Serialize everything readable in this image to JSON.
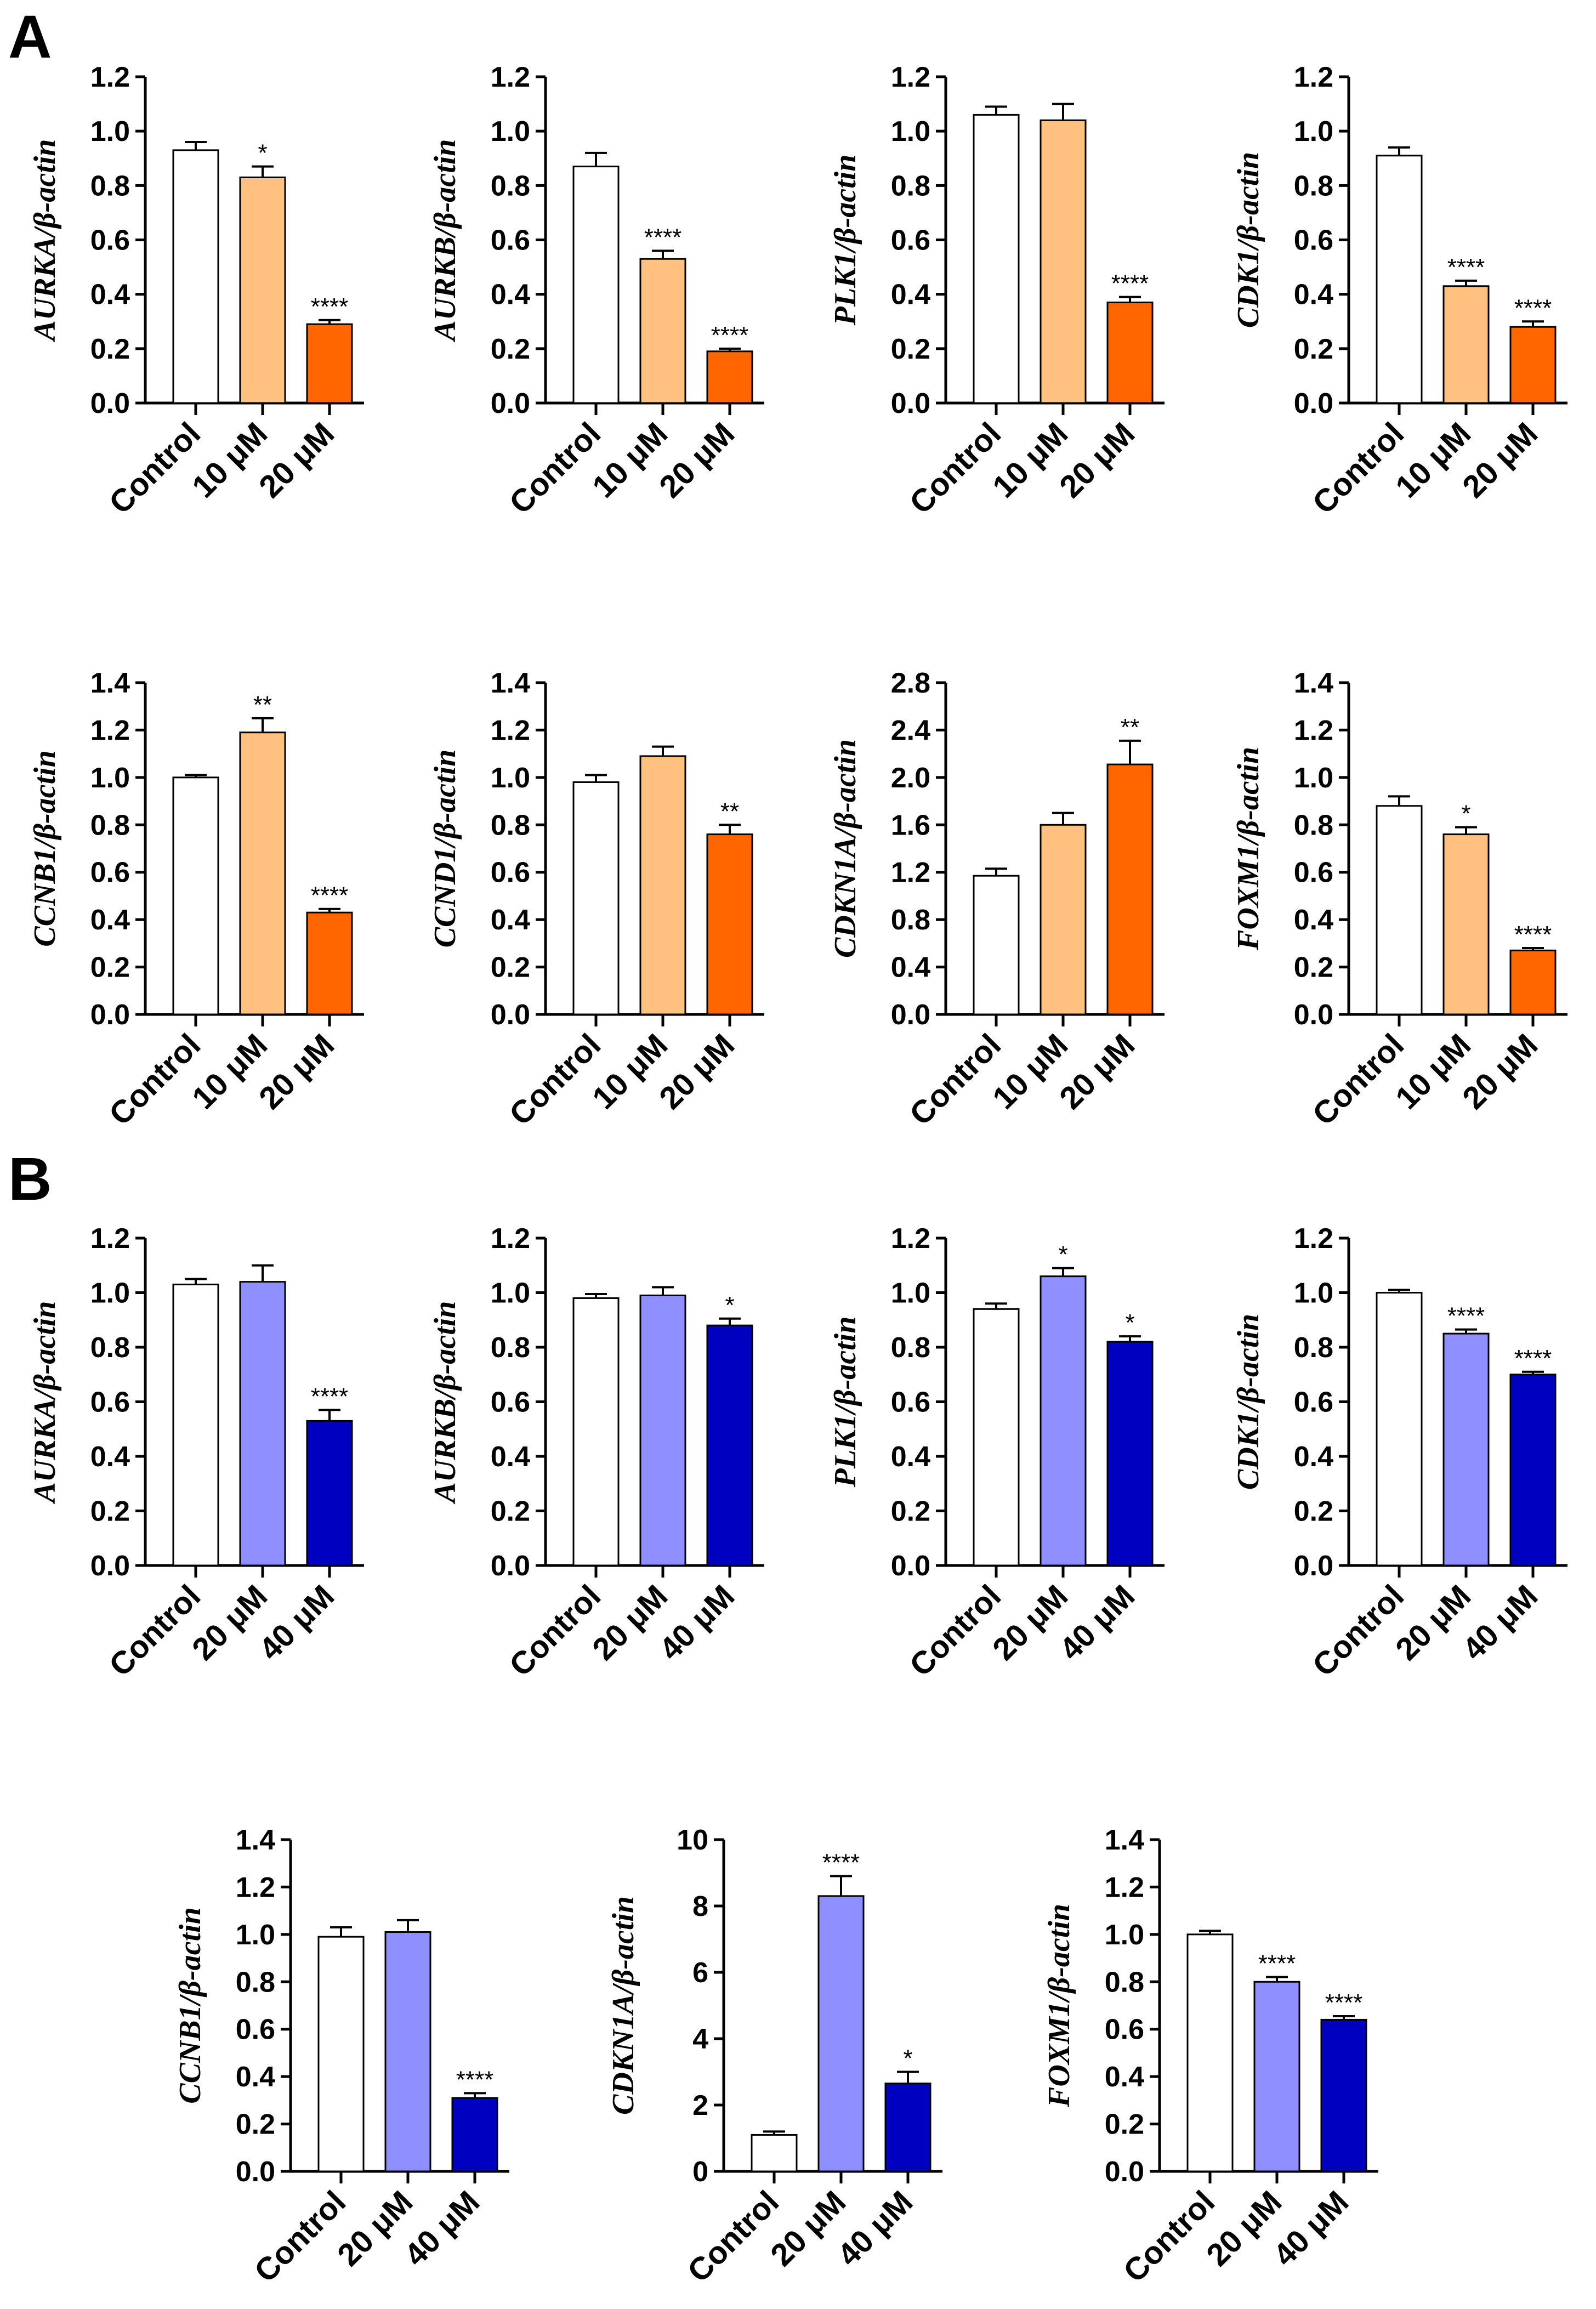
{
  "panels": [
    {
      "letter": "A"
    },
    {
      "letter": "B"
    }
  ],
  "colors": {
    "control": "#ffffff",
    "A_low": "#ffc080",
    "A_high": "#ff6600",
    "B_low": "#8f8fff",
    "B_high": "#0000c0"
  },
  "chart_data": [
    {
      "type": "bar",
      "panel": "A",
      "ylabel": "AURKA/β-actin",
      "ylim": [
        0,
        1.2
      ],
      "yticks": [
        "0.0",
        "0.2",
        "0.4",
        "0.6",
        "0.8",
        "1.0",
        "1.2"
      ],
      "categories": [
        "Control",
        "10 μM",
        "20 μM"
      ],
      "values": [
        0.93,
        0.83,
        0.29
      ],
      "errors": [
        0.03,
        0.04,
        0.015
      ],
      "significance": [
        "",
        "*",
        "****"
      ]
    },
    {
      "type": "bar",
      "panel": "A",
      "ylabel": "AURKB/β-actin",
      "ylim": [
        0,
        1.2
      ],
      "yticks": [
        "0.0",
        "0.2",
        "0.4",
        "0.6",
        "0.8",
        "1.0",
        "1.2"
      ],
      "categories": [
        "Control",
        "10 μM",
        "20 μM"
      ],
      "values": [
        0.87,
        0.53,
        0.19
      ],
      "errors": [
        0.05,
        0.03,
        0.01
      ],
      "significance": [
        "",
        "****",
        "****"
      ]
    },
    {
      "type": "bar",
      "panel": "A",
      "ylabel": "PLK1/β-actin",
      "ylim": [
        0,
        1.2
      ],
      "yticks": [
        "0.0",
        "0.2",
        "0.4",
        "0.6",
        "0.8",
        "1.0",
        "1.2"
      ],
      "categories": [
        "Control",
        "10 μM",
        "20 μM"
      ],
      "values": [
        1.06,
        1.04,
        0.37
      ],
      "errors": [
        0.03,
        0.06,
        0.02
      ],
      "significance": [
        "",
        "",
        "****"
      ]
    },
    {
      "type": "bar",
      "panel": "A",
      "ylabel": "CDK1/β-actin",
      "ylim": [
        0,
        1.2
      ],
      "yticks": [
        "0.0",
        "0.2",
        "0.4",
        "0.6",
        "0.8",
        "1.0",
        "1.2"
      ],
      "categories": [
        "Control",
        "10 μM",
        "20 μM"
      ],
      "values": [
        0.91,
        0.43,
        0.28
      ],
      "errors": [
        0.03,
        0.02,
        0.02
      ],
      "significance": [
        "",
        "****",
        "****"
      ]
    },
    {
      "type": "bar",
      "panel": "A",
      "ylabel": "CCNB1/β-actin",
      "ylim": [
        0,
        1.4
      ],
      "yticks": [
        "0.0",
        "0.2",
        "0.4",
        "0.6",
        "0.8",
        "1.0",
        "1.2",
        "1.4"
      ],
      "categories": [
        "Control",
        "10 μM",
        "20 μM"
      ],
      "values": [
        1.0,
        1.19,
        0.43
      ],
      "errors": [
        0.01,
        0.06,
        0.015
      ],
      "significance": [
        "",
        "**",
        "****"
      ]
    },
    {
      "type": "bar",
      "panel": "A",
      "ylabel": "CCND1/β-actin",
      "ylim": [
        0,
        1.4
      ],
      "yticks": [
        "0.0",
        "0.2",
        "0.4",
        "0.6",
        "0.8",
        "1.0",
        "1.2",
        "1.4"
      ],
      "categories": [
        "Control",
        "10 μM",
        "20 μM"
      ],
      "values": [
        0.98,
        1.09,
        0.76
      ],
      "errors": [
        0.03,
        0.04,
        0.04
      ],
      "significance": [
        "",
        "",
        "**"
      ]
    },
    {
      "type": "bar",
      "panel": "A",
      "ylabel": "CDKN1A/β-actin",
      "ylim": [
        0,
        2.8
      ],
      "yticks": [
        "0.0",
        "0.4",
        "0.8",
        "1.2",
        "1.6",
        "2.0",
        "2.4",
        "2.8"
      ],
      "categories": [
        "Control",
        "10 μM",
        "20 μM"
      ],
      "values": [
        1.17,
        1.6,
        2.11
      ],
      "errors": [
        0.06,
        0.1,
        0.2
      ],
      "significance": [
        "",
        "",
        "**"
      ]
    },
    {
      "type": "bar",
      "panel": "A",
      "ylabel": "FOXM1/β-actin",
      "ylim": [
        0,
        1.4
      ],
      "yticks": [
        "0.0",
        "0.2",
        "0.4",
        "0.6",
        "0.8",
        "1.0",
        "1.2",
        "1.4"
      ],
      "categories": [
        "Control",
        "10 μM",
        "20 μM"
      ],
      "values": [
        0.88,
        0.76,
        0.27
      ],
      "errors": [
        0.04,
        0.03,
        0.01
      ],
      "significance": [
        "",
        "*",
        "****"
      ]
    },
    {
      "type": "bar",
      "panel": "B",
      "ylabel": "AURKA/β-actin",
      "ylim": [
        0,
        1.2
      ],
      "yticks": [
        "0.0",
        "0.2",
        "0.4",
        "0.6",
        "0.8",
        "1.0",
        "1.2"
      ],
      "categories": [
        "Control",
        "20 μM",
        "40 μM"
      ],
      "values": [
        1.03,
        1.04,
        0.53
      ],
      "errors": [
        0.02,
        0.06,
        0.04
      ],
      "significance": [
        "",
        "",
        "****"
      ]
    },
    {
      "type": "bar",
      "panel": "B",
      "ylabel": "AURKB/β-actin",
      "ylim": [
        0,
        1.2
      ],
      "yticks": [
        "0.0",
        "0.2",
        "0.4",
        "0.6",
        "0.8",
        "1.0",
        "1.2"
      ],
      "categories": [
        "Control",
        "20 μM",
        "40 μM"
      ],
      "values": [
        0.98,
        0.99,
        0.88
      ],
      "errors": [
        0.015,
        0.03,
        0.025
      ],
      "significance": [
        "",
        "",
        "*"
      ]
    },
    {
      "type": "bar",
      "panel": "B",
      "ylabel": "PLK1/β-actin",
      "ylim": [
        0,
        1.2
      ],
      "yticks": [
        "0.0",
        "0.2",
        "0.4",
        "0.6",
        "0.8",
        "1.0",
        "1.2"
      ],
      "categories": [
        "Control",
        "20 μM",
        "40 μM"
      ],
      "values": [
        0.94,
        1.06,
        0.82
      ],
      "errors": [
        0.02,
        0.03,
        0.02
      ],
      "significance": [
        "",
        "*",
        "*"
      ]
    },
    {
      "type": "bar",
      "panel": "B",
      "ylabel": "CDK1/β-actin",
      "ylim": [
        0,
        1.2
      ],
      "yticks": [
        "0.0",
        "0.2",
        "0.4",
        "0.6",
        "0.8",
        "1.0",
        "1.2"
      ],
      "categories": [
        "Control",
        "20 μM",
        "40 μM"
      ],
      "values": [
        1.0,
        0.85,
        0.7
      ],
      "errors": [
        0.01,
        0.015,
        0.01
      ],
      "significance": [
        "",
        "****",
        "****"
      ]
    },
    {
      "type": "bar",
      "panel": "B",
      "ylabel": "CCNB1/β-actin",
      "ylim": [
        0,
        1.4
      ],
      "yticks": [
        "0.0",
        "0.2",
        "0.4",
        "0.6",
        "0.8",
        "1.0",
        "1.2",
        "1.4"
      ],
      "categories": [
        "Control",
        "20 μM",
        "40 μM"
      ],
      "values": [
        0.99,
        1.01,
        0.31
      ],
      "errors": [
        0.04,
        0.05,
        0.02
      ],
      "significance": [
        "",
        "",
        "****"
      ]
    },
    {
      "type": "bar",
      "panel": "B",
      "ylabel": "CDKN1A/β-actin",
      "ylim": [
        0,
        10
      ],
      "yticks": [
        "0",
        "2",
        "4",
        "6",
        "8",
        "10"
      ],
      "categories": [
        "Control",
        "20 μM",
        "40 μM"
      ],
      "values": [
        1.1,
        8.3,
        2.65
      ],
      "errors": [
        0.1,
        0.6,
        0.35
      ],
      "significance": [
        "",
        "****",
        "*"
      ]
    },
    {
      "type": "bar",
      "panel": "B",
      "ylabel": "FOXM1/β-actin",
      "ylim": [
        0,
        1.4
      ],
      "yticks": [
        "0.0",
        "0.2",
        "0.4",
        "0.6",
        "0.8",
        "1.0",
        "1.2",
        "1.4"
      ],
      "categories": [
        "Control",
        "20 μM",
        "40 μM"
      ],
      "values": [
        1.0,
        0.8,
        0.64
      ],
      "errors": [
        0.015,
        0.02,
        0.015
      ],
      "significance": [
        "",
        "****",
        "****"
      ]
    }
  ]
}
